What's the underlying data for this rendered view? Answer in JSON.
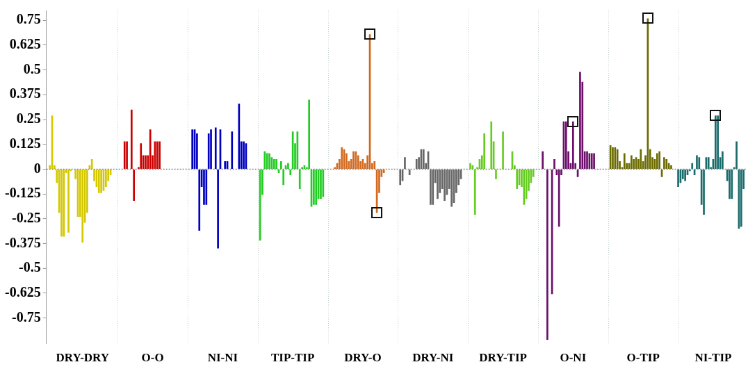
{
  "chart_data": {
    "type": "bar",
    "categories": [
      null,
      null,
      null,
      null,
      null,
      null,
      null,
      null,
      null,
      null,
      null,
      null,
      null,
      null,
      null,
      "DRY-DRY",
      null,
      null,
      null,
      null,
      null,
      null,
      null,
      null,
      null,
      null,
      null,
      null,
      null,
      null,
      null,
      null,
      null,
      null,
      null,
      null,
      null,
      null,
      null,
      null,
      null,
      null,
      null,
      null,
      null,
      "O-O",
      null,
      null,
      null,
      null,
      null,
      null,
      null,
      null,
      null,
      null,
      null,
      null,
      null,
      null,
      null,
      null,
      null,
      null,
      null,
      null,
      null,
      null,
      null,
      null,
      null,
      null,
      null,
      null,
      null,
      "NI-NI",
      null,
      null,
      null,
      null,
      null,
      null,
      null,
      null,
      null,
      null,
      null,
      null,
      null,
      null,
      null,
      null,
      null,
      null,
      null,
      null,
      null,
      null,
      null,
      null,
      null,
      null,
      null,
      null,
      null,
      "TIP-TIP",
      null,
      null,
      null,
      null,
      null,
      null,
      null,
      null,
      null,
      null,
      null,
      null,
      null,
      null,
      null,
      null,
      null,
      null,
      null,
      null,
      null,
      null,
      null,
      null,
      null,
      null,
      null,
      null,
      null,
      "DRY-O",
      null,
      null,
      null,
      null,
      null,
      null,
      null,
      null,
      null,
      null,
      null,
      null,
      null,
      null,
      null,
      null,
      null,
      null,
      null,
      null,
      null,
      null,
      null,
      null,
      null,
      null,
      null,
      null,
      null,
      "DRY-NI",
      null,
      null,
      null,
      null,
      null,
      null,
      null,
      null,
      null,
      null,
      null,
      null,
      null,
      null,
      null,
      null,
      null,
      null,
      null,
      null,
      null,
      null,
      null,
      null,
      null,
      null,
      null,
      null,
      null,
      "DRY-TIP",
      null,
      null,
      null,
      null,
      null,
      null,
      null,
      null,
      null,
      null,
      null,
      null,
      null,
      null,
      null,
      null,
      null,
      null,
      null,
      null,
      null,
      null,
      null,
      null,
      null,
      null,
      null,
      null,
      null,
      "O-NI",
      null,
      null,
      null,
      null,
      null,
      null,
      null,
      null,
      null,
      null,
      null,
      null,
      null,
      null,
      null,
      null,
      null,
      null,
      null,
      null,
      null,
      null,
      null,
      null,
      null,
      null,
      null,
      null,
      null,
      "O-TIP",
      null,
      null,
      null,
      null,
      null,
      null,
      null,
      null,
      null,
      null,
      null,
      null,
      null,
      null,
      null,
      null,
      null,
      null,
      null,
      null,
      null,
      null,
      null,
      null,
      null,
      null,
      null,
      null,
      null,
      "NI-TIP",
      null,
      null,
      null,
      null,
      null,
      null,
      null,
      null,
      null,
      null,
      null,
      null,
      null,
      null
    ],
    "values": [
      null,
      0.02,
      0.27,
      0.02,
      -0.07,
      -0.22,
      -0.34,
      -0.34,
      -0.02,
      -0.32,
      -0.01,
      0,
      -0.05,
      -0.24,
      -0.24,
      -0.37,
      -0.27,
      -0.22,
      0.02,
      0.05,
      -0.06,
      -0.09,
      -0.12,
      -0.12,
      -0.11,
      -0.09,
      -0.06,
      -0.03,
      null,
      null,
      null,
      null,
      null,
      0.14,
      0.14,
      0,
      0.3,
      -0.16,
      0,
      0.01,
      0.13,
      0.07,
      0.07,
      0.07,
      0.2,
      0.07,
      0.14,
      0.14,
      0.14,
      null,
      null,
      null,
      null,
      null,
      null,
      null,
      null,
      null,
      null,
      null,
      null,
      null,
      0.2,
      0.2,
      0.18,
      -0.31,
      -0.09,
      -0.18,
      -0.18,
      0.18,
      0.2,
      0,
      0.21,
      -0.4,
      0.2,
      0,
      0.04,
      0.04,
      0,
      0.19,
      0,
      0,
      0.33,
      0.14,
      0.14,
      0.13,
      null,
      null,
      null,
      null,
      null,
      -0.36,
      -0.13,
      0.09,
      0.08,
      0.08,
      0.06,
      0.05,
      0.05,
      -0.02,
      0.04,
      -0.08,
      0.02,
      0.03,
      -0.03,
      0.19,
      0.13,
      0.19,
      -0.1,
      0.01,
      0.02,
      0.01,
      0.35,
      -0.19,
      -0.18,
      -0.18,
      -0.15,
      -0.15,
      -0.14,
      null,
      null,
      null,
      null,
      0.01,
      0.03,
      0.05,
      0.11,
      0.1,
      0.08,
      0.04,
      0.05,
      0.09,
      0.09,
      0.07,
      0.04,
      0.05,
      0.03,
      0.07,
      0.68,
      0.03,
      0.04,
      -0.22,
      -0.12,
      -0.04,
      -0.02,
      null,
      null,
      null,
      null,
      null,
      null,
      -0.08,
      -0.06,
      0.06,
      0,
      -0.03,
      0,
      0,
      0.05,
      0.06,
      0.1,
      0.1,
      0.03,
      0.09,
      -0.18,
      -0.18,
      -0.07,
      -0.15,
      -0.12,
      -0.1,
      -0.16,
      -0.13,
      -0.1,
      -0.19,
      -0.17,
      -0.12,
      -0.08,
      -0.05,
      null,
      null,
      null,
      0.03,
      0.02,
      -0.23,
      0.01,
      0.05,
      0.07,
      0.18,
      0,
      0,
      0.24,
      0.14,
      -0.05,
      0,
      0,
      0.19,
      0,
      0,
      0,
      0.09,
      0.02,
      -0.1,
      -0.08,
      -0.09,
      -0.18,
      -0.15,
      -0.11,
      -0.07,
      -0.04,
      null,
      null,
      null,
      0.09,
      0,
      -0.86,
      0,
      -0.63,
      0.05,
      -0.03,
      -0.29,
      -0.03,
      0.24,
      0.24,
      0.09,
      0.03,
      0.24,
      0.03,
      -0.04,
      0.49,
      0.44,
      0.09,
      0.09,
      0.08,
      0.08,
      0.08,
      null,
      null,
      null,
      null,
      null,
      null,
      0.12,
      0.11,
      0.11,
      0.1,
      0.04,
      0.01,
      0.08,
      0.03,
      0.03,
      0.07,
      0.05,
      0.06,
      0.05,
      0.1,
      0.04,
      0.07,
      0.76,
      0.1,
      0.06,
      0.05,
      0.08,
      0.09,
      -0.04,
      0.06,
      0.05,
      0.03,
      0.02,
      null,
      null,
      -0.09,
      -0.07,
      -0.05,
      -0.06,
      -0.03,
      -0.01,
      0.03,
      -0.03,
      0.07,
      0.06,
      -0.18,
      -0.23,
      0.06,
      0.06,
      0.01,
      0.05,
      0.27,
      0.27,
      0.06,
      0.09,
      0,
      -0.06,
      -0.15,
      -0.15,
      0.01,
      0.14,
      -0.3,
      -0.29,
      -0.1,
      null
    ],
    "colors": [
      "#d4c800",
      "#d4c800",
      "#d4c800",
      "#d4c800",
      "#d4c800",
      "#d4c800",
      "#d4c800",
      "#d4c800",
      "#d4c800",
      "#d4c800",
      "#d4c800",
      "#d4c800",
      "#d4c800",
      "#d4c800",
      "#d4c800",
      "#d4c800",
      "#d4c800",
      "#d4c800",
      "#d4c800",
      "#d4c800",
      "#d4c800",
      "#d4c800",
      "#d4c800",
      "#d4c800",
      "#d4c800",
      "#d4c800",
      "#d4c800",
      "#d4c800",
      "#d4c800",
      "#d4c800",
      "#cc0000",
      "#cc0000",
      "#cc0000",
      "#cc0000",
      "#cc0000",
      "#cc0000",
      "#cc0000",
      "#cc0000",
      "#cc0000",
      "#cc0000",
      "#cc0000",
      "#cc0000",
      "#cc0000",
      "#cc0000",
      "#cc0000",
      "#cc0000",
      "#cc0000",
      "#cc0000",
      "#cc0000",
      "#cc0000",
      "#cc0000",
      "#cc0000",
      "#cc0000",
      "#cc0000",
      "#cc0000",
      "#cc0000",
      "#cc0000",
      "#cc0000",
      "#cc0000",
      "#cc0000",
      "#0000c0",
      "#0000c0",
      "#0000c0",
      "#0000c0",
      "#0000c0",
      "#0000c0",
      "#0000c0",
      "#0000c0",
      "#0000c0",
      "#0000c0",
      "#0000c0",
      "#0000c0",
      "#0000c0",
      "#0000c0",
      "#0000c0",
      "#0000c0",
      "#0000c0",
      "#0000c0",
      "#0000c0",
      "#0000c0",
      "#0000c0",
      "#0000c0",
      "#0000c0",
      "#0000c0",
      "#0000c0",
      "#0000c0",
      "#0000c0",
      "#0000c0",
      "#0000c0",
      "#0000c0",
      "#22cc22",
      "#22cc22",
      "#22cc22",
      "#22cc22",
      "#22cc22",
      "#22cc22",
      "#22cc22",
      "#22cc22",
      "#22cc22",
      "#22cc22",
      "#22cc22",
      "#22cc22",
      "#22cc22",
      "#22cc22",
      "#22cc22",
      "#22cc22",
      "#22cc22",
      "#22cc22",
      "#22cc22",
      "#22cc22",
      "#22cc22",
      "#22cc22",
      "#22cc22",
      "#22cc22",
      "#22cc22",
      "#22cc22",
      "#22cc22",
      "#22cc22",
      "#22cc22",
      "#22cc22",
      "#d2691e",
      "#d2691e",
      "#d2691e",
      "#d2691e",
      "#d2691e",
      "#d2691e",
      "#d2691e",
      "#d2691e",
      "#d2691e",
      "#d2691e",
      "#d2691e",
      "#d2691e",
      "#d2691e",
      "#d2691e",
      "#d2691e",
      "#d2691e",
      "#d2691e",
      "#d2691e",
      "#d2691e",
      "#d2691e",
      "#d2691e",
      "#d2691e",
      "#d2691e",
      "#d2691e",
      "#d2691e",
      "#d2691e",
      "#d2691e",
      "#d2691e",
      "#d2691e",
      "#d2691e",
      "#666666",
      "#666666",
      "#666666",
      "#666666",
      "#666666",
      "#666666",
      "#666666",
      "#666666",
      "#666666",
      "#666666",
      "#666666",
      "#666666",
      "#666666",
      "#666666",
      "#666666",
      "#666666",
      "#666666",
      "#666666",
      "#666666",
      "#666666",
      "#666666",
      "#666666",
      "#666666",
      "#666666",
      "#666666",
      "#666666",
      "#666666",
      "#666666",
      "#666666",
      "#666666",
      "#66cc22",
      "#66cc22",
      "#66cc22",
      "#66cc22",
      "#66cc22",
      "#66cc22",
      "#66cc22",
      "#66cc22",
      "#66cc22",
      "#66cc22",
      "#66cc22",
      "#66cc22",
      "#66cc22",
      "#66cc22",
      "#66cc22",
      "#66cc22",
      "#66cc22",
      "#66cc22",
      "#66cc22",
      "#66cc22",
      "#66cc22",
      "#66cc22",
      "#66cc22",
      "#66cc22",
      "#66cc22",
      "#66cc22",
      "#66cc22",
      "#66cc22",
      "#66cc22",
      "#66cc22",
      "#6b0f6b",
      "#6b0f6b",
      "#6b0f6b",
      "#6b0f6b",
      "#6b0f6b",
      "#6b0f6b",
      "#6b0f6b",
      "#6b0f6b",
      "#6b0f6b",
      "#6b0f6b",
      "#6b0f6b",
      "#6b0f6b",
      "#6b0f6b",
      "#6b0f6b",
      "#6b0f6b",
      "#6b0f6b",
      "#6b0f6b",
      "#6b0f6b",
      "#6b0f6b",
      "#6b0f6b",
      "#6b0f6b",
      "#6b0f6b",
      "#6b0f6b",
      "#6b0f6b",
      "#6b0f6b",
      "#6b0f6b",
      "#6b0f6b",
      "#6b0f6b",
      "#6b0f6b",
      "#6b0f6b",
      "#6b6b00",
      "#6b6b00",
      "#6b6b00",
      "#6b6b00",
      "#6b6b00",
      "#6b6b00",
      "#6b6b00",
      "#6b6b00",
      "#6b6b00",
      "#6b6b00",
      "#6b6b00",
      "#6b6b00",
      "#6b6b00",
      "#6b6b00",
      "#6b6b00",
      "#6b6b00",
      "#6b6b00",
      "#6b6b00",
      "#6b6b00",
      "#6b6b00",
      "#6b6b00",
      "#6b6b00",
      "#6b6b00",
      "#6b6b00",
      "#6b6b00",
      "#6b6b00",
      "#6b6b00",
      "#6b6b00",
      "#6b6b00",
      "#6b6b00",
      "#1a6b6b",
      "#1a6b6b",
      "#1a6b6b",
      "#1a6b6b",
      "#1a6b6b",
      "#1a6b6b",
      "#1a6b6b",
      "#1a6b6b",
      "#1a6b6b",
      "#1a6b6b",
      "#1a6b6b",
      "#1a6b6b",
      "#1a6b6b",
      "#1a6b6b",
      "#1a6b6b",
      "#1a6b6b",
      "#1a6b6b",
      "#1a6b6b",
      "#1a6b6b",
      "#1a6b6b",
      "#1a6b6b",
      "#1a6b6b",
      "#1a6b6b",
      "#1a6b6b",
      "#1a6b6b",
      "#1a6b6b",
      "#1a6b6b",
      "#1a6b6b",
      "#1a6b6b",
      "#1a6b6b"
    ],
    "ref_lines": [
      {
        "axis": "y",
        "value": 0,
        "color": "#888888",
        "line_style": "dotted"
      }
    ],
    "ylim": [
      -0.88,
      0.8
    ],
    "yticks": [
      {
        "value": 0.75,
        "label": "0.75"
      },
      {
        "value": 0.625,
        "label": "0.625"
      },
      {
        "value": 0.5,
        "label": "0.5"
      },
      {
        "value": 0.375,
        "label": "0.375"
      },
      {
        "value": 0.25,
        "label": "0.25"
      },
      {
        "value": 0.125,
        "label": "0.125"
      },
      {
        "value": 0,
        "label": "0"
      },
      {
        "value": -0.125,
        "label": "-0.125"
      },
      {
        "value": -0.25,
        "label": "-0.25"
      },
      {
        "value": -0.375,
        "label": "-0.375"
      },
      {
        "value": -0.5,
        "label": "-0.5"
      },
      {
        "value": -0.625,
        "label": "-0.625"
      },
      {
        "value": -0.75,
        "label": "-0.75"
      }
    ]
  }
}
